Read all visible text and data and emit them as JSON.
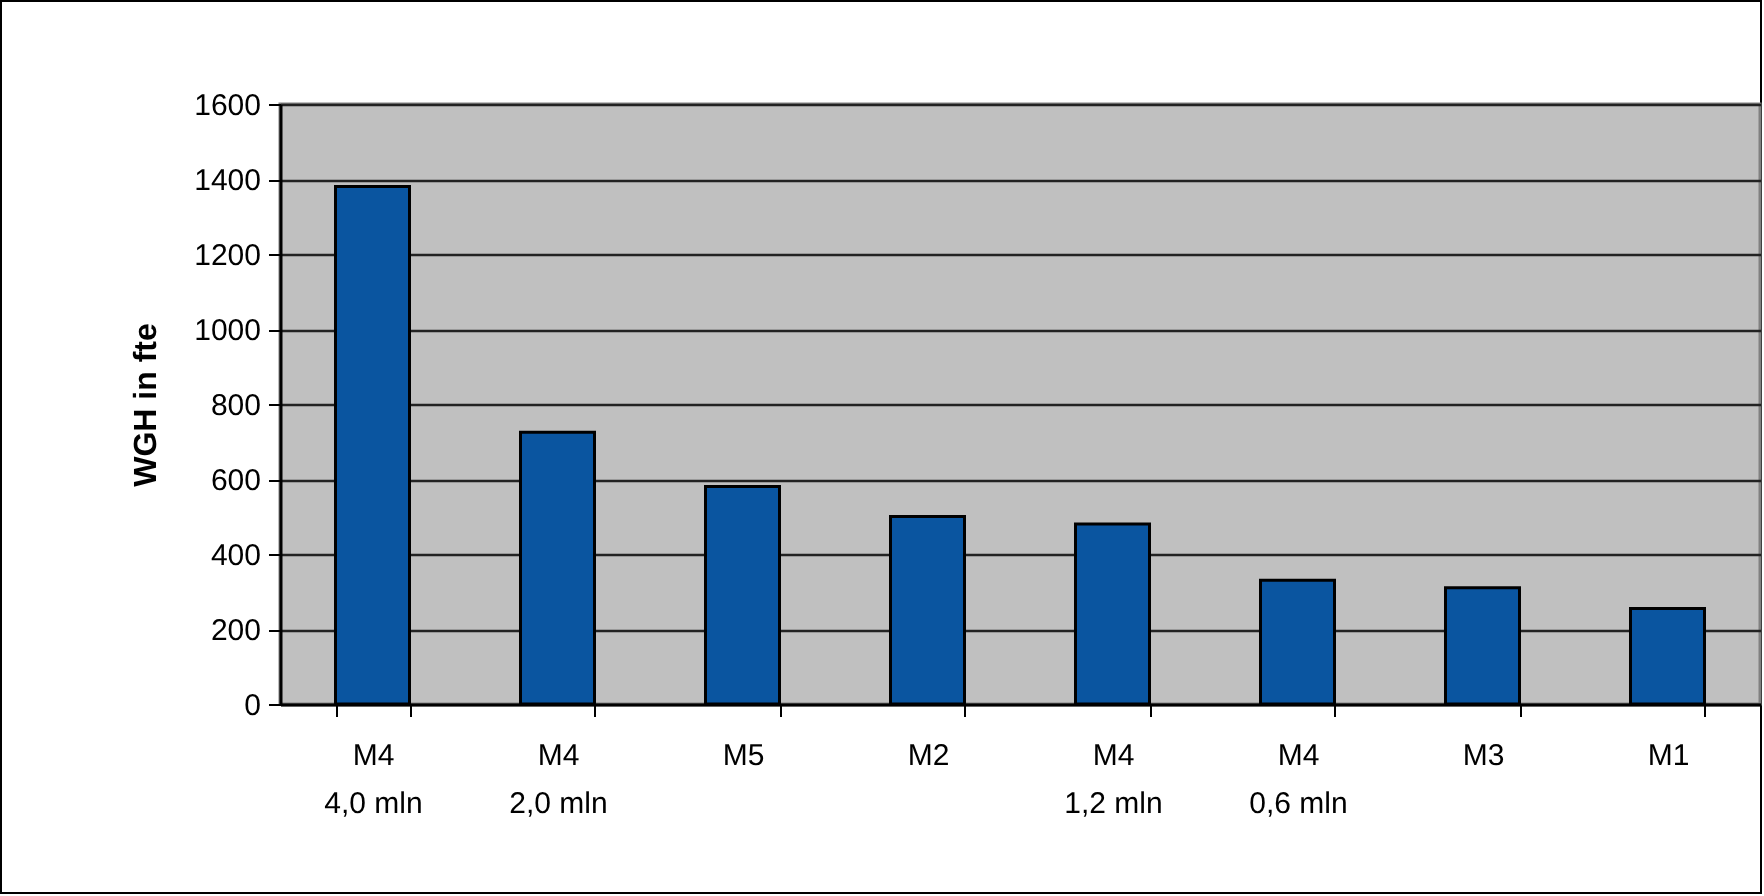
{
  "chart_data": {
    "type": "bar",
    "ylabel": "WGH in fte",
    "categories": [
      "M4\n4,0 mln",
      "M4\n2,0 mln",
      "M5",
      "M2",
      "M4\n1,2 mln",
      "M4\n0,6 mln",
      "M3",
      "M1"
    ],
    "values": [
      1380,
      725,
      580,
      500,
      480,
      330,
      310,
      255
    ],
    "color": "#0a55a0",
    "ylim": [
      0,
      1600
    ],
    "yticks": [
      0,
      200,
      400,
      600,
      800,
      1000,
      1200,
      1400,
      1600
    ],
    "grid": "y"
  }
}
